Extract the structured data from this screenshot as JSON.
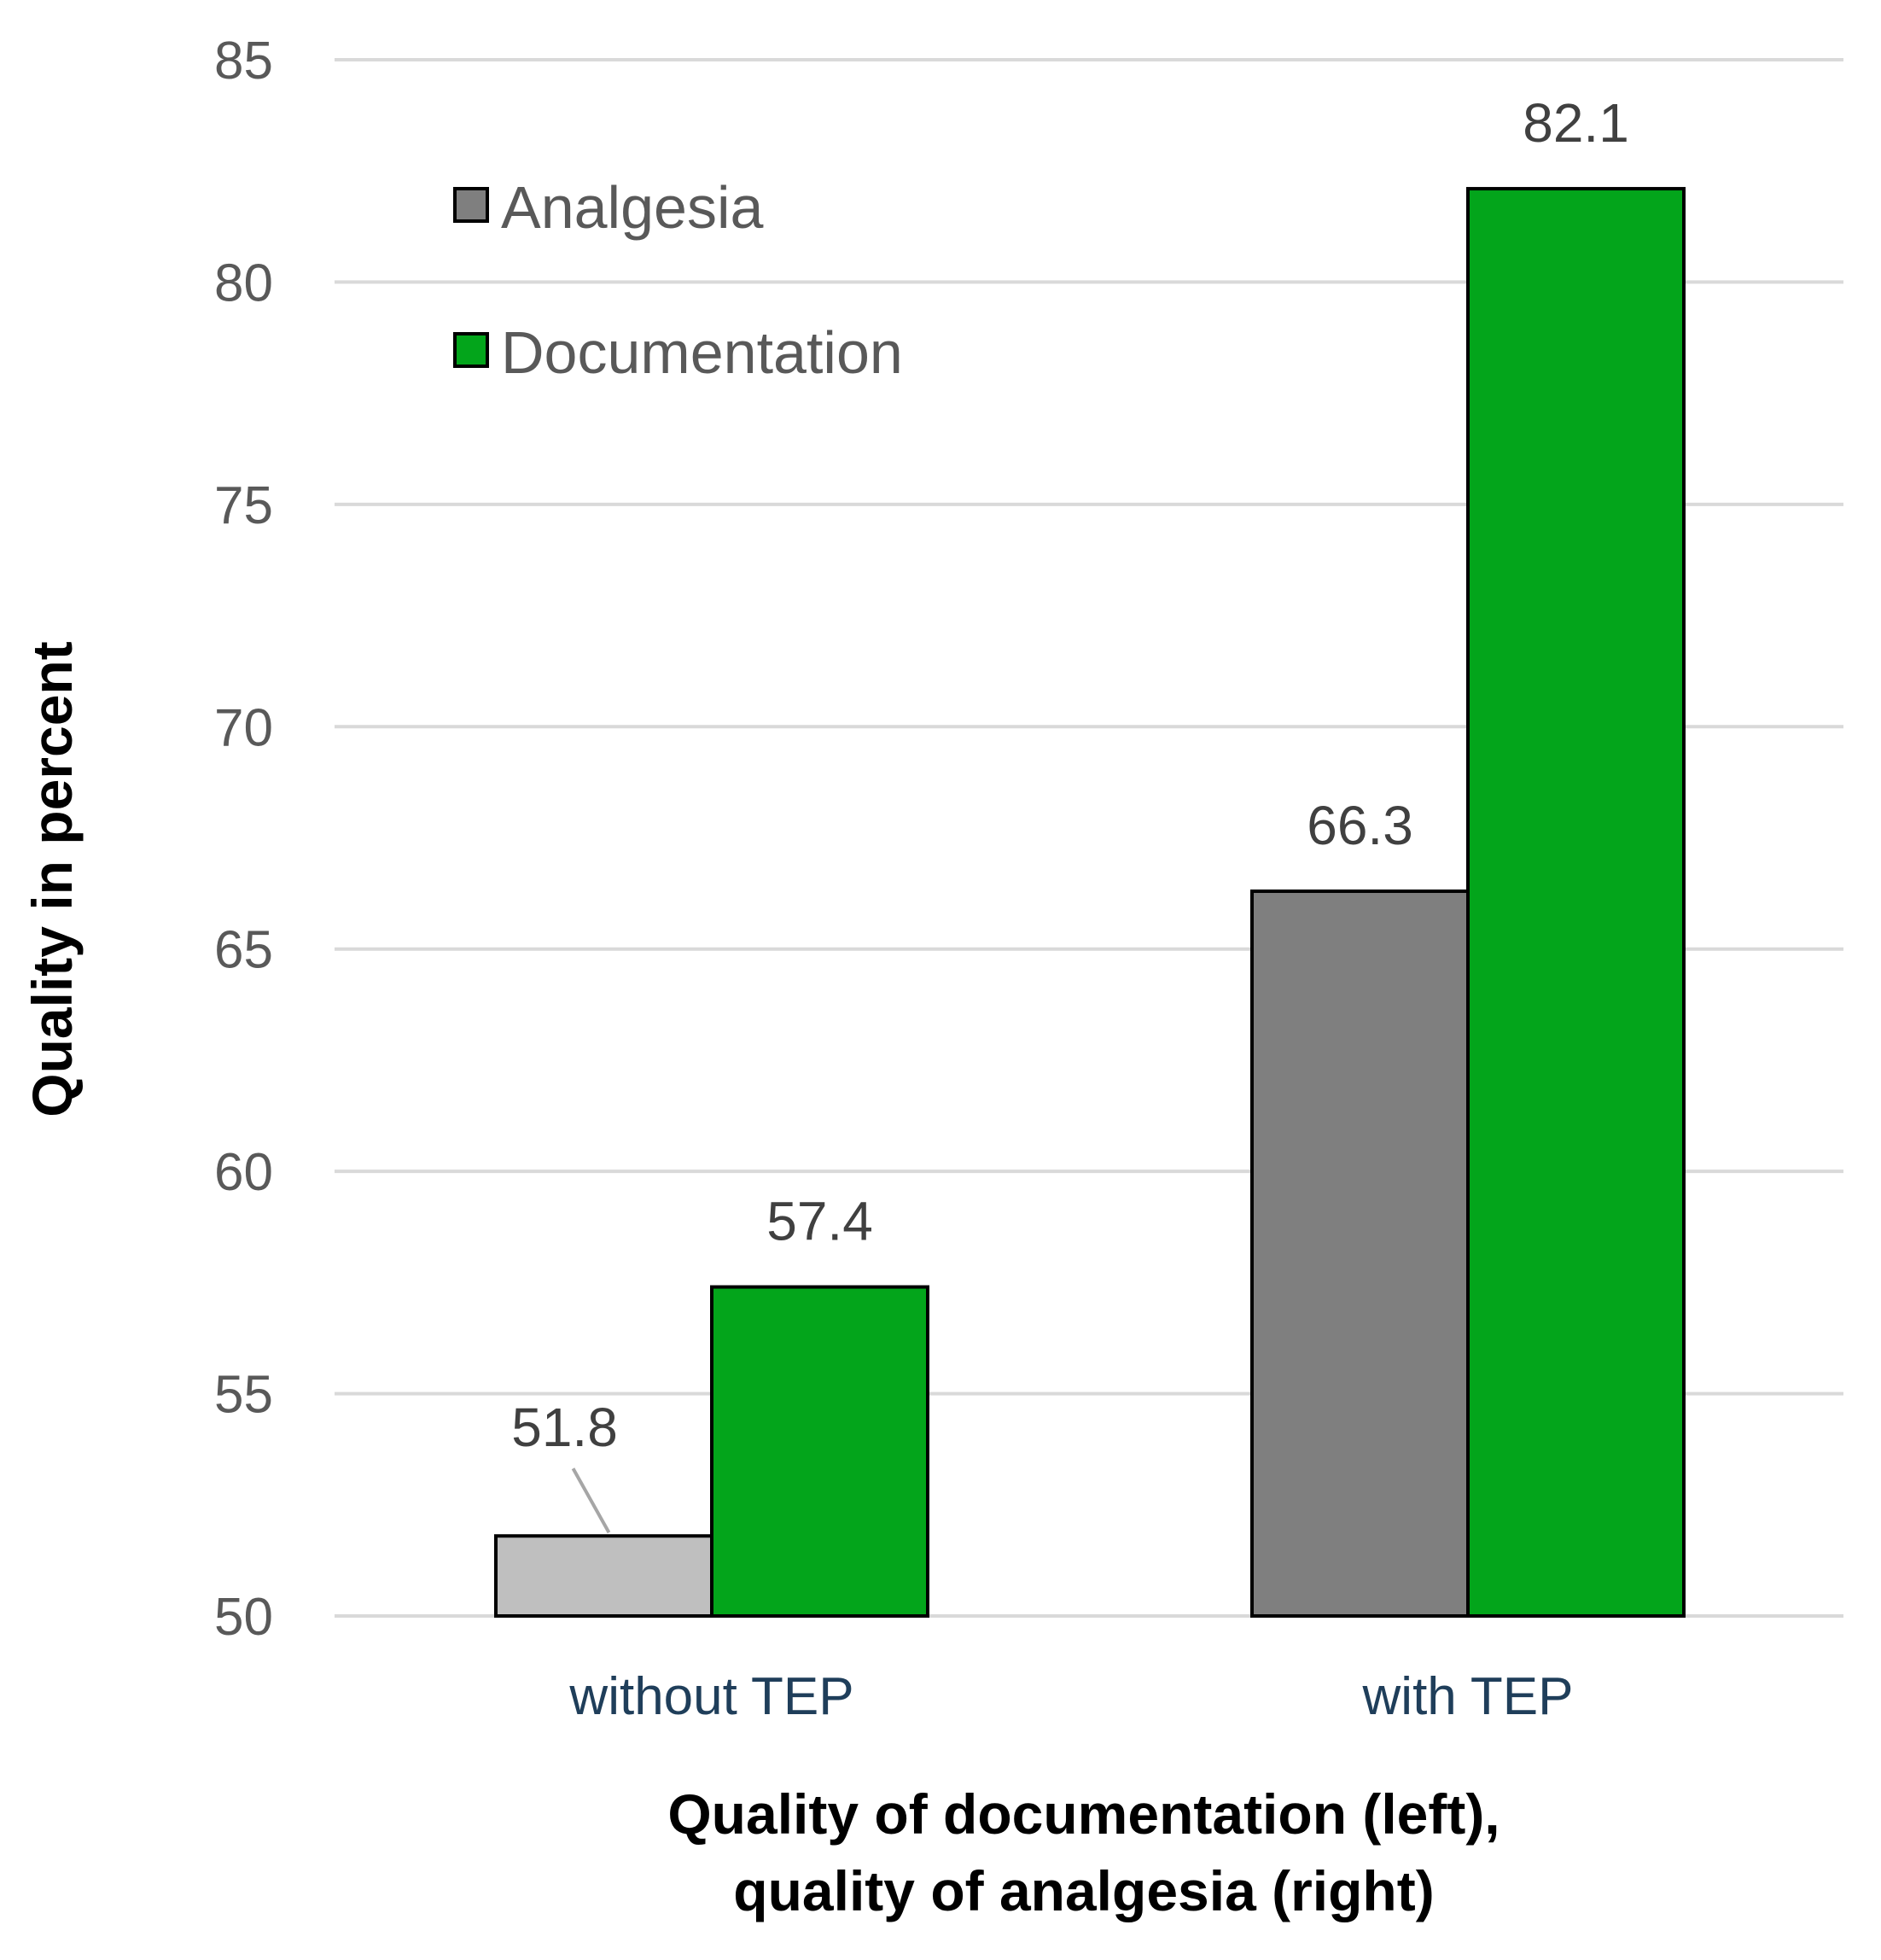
{
  "chart_data": {
    "type": "bar",
    "categories": [
      "without TEP",
      "with TEP"
    ],
    "series": [
      {
        "name": "Analgesia",
        "values": [
          51.8,
          66.3
        ],
        "colors": [
          "#bfbfbf",
          "#7f7f7f"
        ]
      },
      {
        "name": "Documentation",
        "values": [
          57.4,
          82.1
        ],
        "colors": [
          "#03a51b",
          "#03a51b"
        ]
      }
    ],
    "legend": {
      "placement": "top-left",
      "swatch_colors": [
        "#7f7f7f",
        "#03a51b"
      ]
    },
    "ylim": [
      50,
      85
    ],
    "yticks": [
      50,
      55,
      60,
      65,
      70,
      75,
      80,
      85
    ],
    "ylabel": "Quality in percent",
    "xlabel": [
      "Quality of documentation (left),",
      "quality of analgesia (right)"
    ],
    "grid": true,
    "gridline_color": "#d9d9d9",
    "data_labels": true
  }
}
